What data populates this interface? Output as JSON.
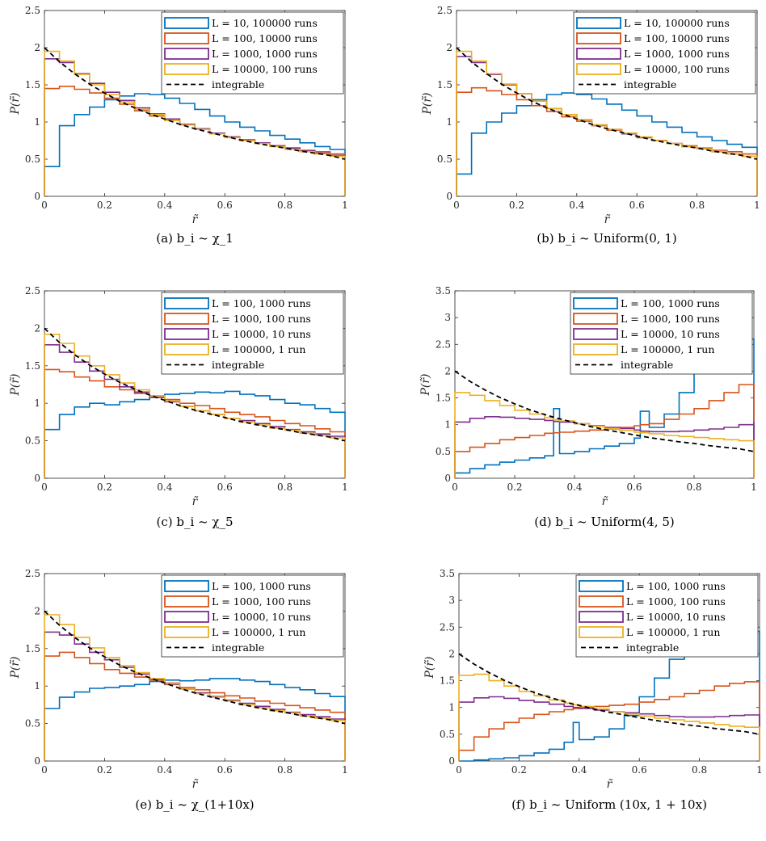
{
  "figure": {
    "series_colors": [
      "#0072BD",
      "#D95319",
      "#7E2F8E",
      "#EDB120"
    ],
    "reference_color": "#000000"
  },
  "chart_data": [
    {
      "id": "a",
      "type": "line",
      "caption": "(a) b_i ~ χ_1",
      "xlabel": "r̃",
      "ylabel": "P(r̃)",
      "xlim": [
        0,
        1
      ],
      "ylim": [
        0,
        2.5
      ],
      "x_ticks": [
        "0",
        "0.2",
        "0.4",
        "0.6",
        "0.8",
        "1"
      ],
      "y_ticks": [
        "0",
        "0.5",
        "1",
        "1.5",
        "2",
        "2.5"
      ],
      "grid": false,
      "legend_position": "top-right",
      "x": [
        0,
        0.05,
        0.1,
        0.15,
        0.2,
        0.25,
        0.3,
        0.35,
        0.4,
        0.45,
        0.5,
        0.55,
        0.6,
        0.65,
        0.7,
        0.75,
        0.8,
        0.85,
        0.9,
        0.95,
        1
      ],
      "series": [
        {
          "name": "L = 10, 100000 runs",
          "values": [
            0.4,
            0.95,
            1.1,
            1.2,
            1.3,
            1.35,
            1.38,
            1.37,
            1.32,
            1.25,
            1.17,
            1.08,
            1.0,
            0.93,
            0.88,
            0.82,
            0.77,
            0.72,
            0.67,
            0.63,
            0.6
          ]
        },
        {
          "name": "L = 100, 10000 runs",
          "values": [
            1.45,
            1.48,
            1.44,
            1.39,
            1.32,
            1.24,
            1.15,
            1.08,
            1.02,
            0.96,
            0.9,
            0.85,
            0.8,
            0.75,
            0.71,
            0.68,
            0.65,
            0.62,
            0.6,
            0.57,
            0.55
          ]
        },
        {
          "name": "L = 1000, 1000 runs",
          "values": [
            1.85,
            1.8,
            1.65,
            1.52,
            1.4,
            1.29,
            1.19,
            1.11,
            1.04,
            0.97,
            0.91,
            0.85,
            0.8,
            0.76,
            0.72,
            0.68,
            0.65,
            0.61,
            0.58,
            0.55,
            0.52
          ]
        },
        {
          "name": "L = 10000, 100 runs",
          "values": [
            1.95,
            1.82,
            1.64,
            1.5,
            1.37,
            1.27,
            1.17,
            1.1,
            1.02,
            0.96,
            0.9,
            0.84,
            0.79,
            0.75,
            0.71,
            0.67,
            0.63,
            0.6,
            0.57,
            0.54,
            0.51
          ]
        },
        {
          "name": "integrable",
          "values": [
            2.0,
            1.81,
            1.65,
            1.51,
            1.39,
            1.28,
            1.19,
            1.11,
            1.04,
            0.97,
            0.91,
            0.86,
            0.81,
            0.76,
            0.72,
            0.68,
            0.65,
            0.61,
            0.58,
            0.55,
            0.5
          ]
        }
      ]
    },
    {
      "id": "b",
      "type": "line",
      "caption": "(b) b_i ~ Uniform(0, 1)",
      "xlabel": "r̃",
      "ylabel": "P(r̃)",
      "xlim": [
        0,
        1
      ],
      "ylim": [
        0,
        2.5
      ],
      "x_ticks": [
        "0",
        "0.2",
        "0.4",
        "0.6",
        "0.8",
        "1"
      ],
      "y_ticks": [
        "0",
        "0.5",
        "1",
        "1.5",
        "2",
        "2.5"
      ],
      "grid": false,
      "legend_position": "top-right",
      "x": [
        0,
        0.05,
        0.1,
        0.15,
        0.2,
        0.25,
        0.3,
        0.35,
        0.4,
        0.45,
        0.5,
        0.55,
        0.6,
        0.65,
        0.7,
        0.75,
        0.8,
        0.85,
        0.9,
        0.95,
        1
      ],
      "series": [
        {
          "name": "L = 10, 100000 runs",
          "values": [
            0.3,
            0.85,
            1.0,
            1.12,
            1.22,
            1.3,
            1.37,
            1.39,
            1.37,
            1.31,
            1.24,
            1.16,
            1.08,
            1.0,
            0.93,
            0.86,
            0.8,
            0.75,
            0.7,
            0.66,
            0.62
          ]
        },
        {
          "name": "L = 100, 10000 runs",
          "values": [
            1.4,
            1.46,
            1.42,
            1.37,
            1.3,
            1.22,
            1.14,
            1.07,
            1.01,
            0.95,
            0.89,
            0.84,
            0.79,
            0.75,
            0.71,
            0.68,
            0.65,
            0.62,
            0.6,
            0.57,
            0.55
          ]
        },
        {
          "name": "L = 1000, 1000 runs",
          "values": [
            1.88,
            1.8,
            1.64,
            1.5,
            1.38,
            1.28,
            1.18,
            1.1,
            1.03,
            0.96,
            0.9,
            0.84,
            0.79,
            0.75,
            0.71,
            0.67,
            0.64,
            0.6,
            0.57,
            0.54,
            0.51
          ]
        },
        {
          "name": "L = 10000, 100 runs",
          "values": [
            1.95,
            1.82,
            1.65,
            1.51,
            1.38,
            1.28,
            1.18,
            1.1,
            1.03,
            0.96,
            0.9,
            0.85,
            0.8,
            0.75,
            0.71,
            0.67,
            0.64,
            0.6,
            0.57,
            0.54,
            0.51
          ]
        },
        {
          "name": "integrable",
          "values": [
            2.0,
            1.81,
            1.65,
            1.51,
            1.39,
            1.28,
            1.19,
            1.11,
            1.04,
            0.97,
            0.91,
            0.86,
            0.81,
            0.76,
            0.72,
            0.68,
            0.65,
            0.61,
            0.58,
            0.55,
            0.5
          ]
        }
      ]
    },
    {
      "id": "c",
      "type": "line",
      "caption": "(c) b_i ~ χ_5",
      "xlabel": "r̃",
      "ylabel": "P(r̃)",
      "xlim": [
        0,
        1
      ],
      "ylim": [
        0,
        2.5
      ],
      "x_ticks": [
        "0",
        "0.2",
        "0.4",
        "0.6",
        "0.8",
        "1"
      ],
      "y_ticks": [
        "0",
        "0.5",
        "1",
        "1.5",
        "2",
        "2.5"
      ],
      "grid": false,
      "legend_position": "top-right",
      "x": [
        0,
        0.05,
        0.1,
        0.15,
        0.2,
        0.25,
        0.3,
        0.35,
        0.4,
        0.45,
        0.5,
        0.55,
        0.6,
        0.65,
        0.7,
        0.75,
        0.8,
        0.85,
        0.9,
        0.95,
        1
      ],
      "series": [
        {
          "name": "L = 100, 1000 runs",
          "values": [
            0.65,
            0.85,
            0.95,
            1.0,
            0.98,
            1.02,
            1.05,
            1.08,
            1.12,
            1.13,
            1.15,
            1.14,
            1.16,
            1.12,
            1.1,
            1.05,
            1.0,
            0.98,
            0.93,
            0.88,
            0.82
          ]
        },
        {
          "name": "L = 1000, 100 runs",
          "values": [
            1.45,
            1.42,
            1.35,
            1.3,
            1.22,
            1.18,
            1.13,
            1.1,
            1.05,
            1.0,
            0.97,
            0.93,
            0.88,
            0.85,
            0.82,
            0.77,
            0.73,
            0.7,
            0.66,
            0.62,
            0.6
          ]
        },
        {
          "name": "L = 10000, 10 runs",
          "values": [
            1.78,
            1.68,
            1.55,
            1.43,
            1.32,
            1.22,
            1.15,
            1.08,
            1.02,
            0.96,
            0.9,
            0.85,
            0.8,
            0.77,
            0.73,
            0.69,
            0.65,
            0.62,
            0.59,
            0.56,
            0.53
          ]
        },
        {
          "name": "L = 100000, 1 run",
          "values": [
            1.92,
            1.8,
            1.63,
            1.5,
            1.38,
            1.27,
            1.18,
            1.1,
            1.03,
            0.96,
            0.9,
            0.85,
            0.8,
            0.75,
            0.71,
            0.67,
            0.64,
            0.6,
            0.57,
            0.54,
            0.51
          ]
        },
        {
          "name": "integrable",
          "values": [
            2.0,
            1.81,
            1.65,
            1.51,
            1.39,
            1.28,
            1.19,
            1.11,
            1.04,
            0.97,
            0.91,
            0.86,
            0.81,
            0.76,
            0.72,
            0.68,
            0.65,
            0.61,
            0.58,
            0.55,
            0.5
          ]
        }
      ]
    },
    {
      "id": "d",
      "type": "line",
      "caption": "(d) b_i ~ Uniform(4, 5)",
      "xlabel": "r̃",
      "ylabel": "P(r̃)",
      "xlim": [
        0,
        1
      ],
      "ylim": [
        0,
        3.5
      ],
      "x_ticks": [
        "0",
        "0.2",
        "0.4",
        "0.6",
        "0.8",
        "1"
      ],
      "y_ticks": [
        "0",
        "0.5",
        "1",
        "1.5",
        "2",
        "2.5",
        "3",
        "3.5"
      ],
      "grid": false,
      "legend_position": "top-right",
      "x": [
        0,
        0.05,
        0.1,
        0.15,
        0.2,
        0.25,
        0.3,
        0.33,
        0.35,
        0.4,
        0.45,
        0.5,
        0.55,
        0.6,
        0.62,
        0.65,
        0.7,
        0.75,
        0.8,
        0.85,
        0.9,
        0.95,
        1
      ],
      "series": [
        {
          "name": "L = 100, 1000 runs",
          "values": [
            0.1,
            0.18,
            0.25,
            0.3,
            0.34,
            0.38,
            0.42,
            1.3,
            0.46,
            0.5,
            0.55,
            0.6,
            0.65,
            0.75,
            1.25,
            0.95,
            1.2,
            1.6,
            2.1,
            2.5,
            2.65,
            2.6,
            2.35
          ]
        },
        {
          "name": "L = 1000, 100 runs",
          "values": [
            0.5,
            0.58,
            0.65,
            0.72,
            0.76,
            0.8,
            0.84,
            0.85,
            0.86,
            0.88,
            0.9,
            0.92,
            0.95,
            0.98,
            1.0,
            1.02,
            1.1,
            1.2,
            1.3,
            1.45,
            1.6,
            1.75,
            1.72
          ]
        },
        {
          "name": "L = 10000, 10 runs",
          "values": [
            1.05,
            1.12,
            1.15,
            1.14,
            1.12,
            1.1,
            1.08,
            1.06,
            1.05,
            1.02,
            0.98,
            0.95,
            0.93,
            0.9,
            0.88,
            0.87,
            0.87,
            0.88,
            0.9,
            0.92,
            0.95,
            1.0,
            1.05
          ]
        },
        {
          "name": "L = 100000, 1 run",
          "values": [
            1.6,
            1.55,
            1.45,
            1.36,
            1.27,
            1.2,
            1.13,
            1.09,
            1.07,
            1.02,
            0.97,
            0.93,
            0.89,
            0.86,
            0.85,
            0.83,
            0.8,
            0.78,
            0.76,
            0.74,
            0.72,
            0.7,
            0.68
          ]
        },
        {
          "name": "integrable",
          "values": [
            2.0,
            1.81,
            1.65,
            1.51,
            1.39,
            1.28,
            1.19,
            1.14,
            1.11,
            1.04,
            0.97,
            0.91,
            0.86,
            0.81,
            0.79,
            0.76,
            0.72,
            0.68,
            0.65,
            0.61,
            0.58,
            0.55,
            0.5
          ]
        }
      ]
    },
    {
      "id": "e",
      "type": "line",
      "caption": "(e) b_i ~ χ_(1+10x)",
      "xlabel": "r̃",
      "ylabel": "P(r̃)",
      "xlim": [
        0,
        1
      ],
      "ylim": [
        0,
        2.5
      ],
      "x_ticks": [
        "0",
        "0.2",
        "0.4",
        "0.6",
        "0.8",
        "1"
      ],
      "y_ticks": [
        "0",
        "0.5",
        "1",
        "1.5",
        "2",
        "2.5"
      ],
      "grid": false,
      "legend_position": "top-right",
      "x": [
        0,
        0.05,
        0.1,
        0.15,
        0.2,
        0.25,
        0.3,
        0.35,
        0.4,
        0.45,
        0.5,
        0.55,
        0.6,
        0.65,
        0.7,
        0.75,
        0.8,
        0.85,
        0.9,
        0.95,
        1
      ],
      "series": [
        {
          "name": "L = 100, 1000 runs",
          "values": [
            0.7,
            0.85,
            0.92,
            0.97,
            0.98,
            1.0,
            1.02,
            1.06,
            1.08,
            1.07,
            1.08,
            1.1,
            1.1,
            1.08,
            1.06,
            1.02,
            0.98,
            0.95,
            0.9,
            0.86,
            0.8
          ]
        },
        {
          "name": "L = 1000, 100 runs",
          "values": [
            1.4,
            1.45,
            1.38,
            1.3,
            1.22,
            1.17,
            1.12,
            1.08,
            1.04,
            0.98,
            0.95,
            0.91,
            0.87,
            0.84,
            0.8,
            0.77,
            0.74,
            0.71,
            0.68,
            0.65,
            0.62
          ]
        },
        {
          "name": "L = 10000, 10 runs",
          "values": [
            1.72,
            1.68,
            1.56,
            1.45,
            1.35,
            1.25,
            1.16,
            1.09,
            1.02,
            0.96,
            0.91,
            0.86,
            0.81,
            0.77,
            0.73,
            0.69,
            0.65,
            0.62,
            0.59,
            0.56,
            0.54
          ]
        },
        {
          "name": "L = 100000, 1 run",
          "values": [
            1.95,
            1.82,
            1.65,
            1.51,
            1.38,
            1.27,
            1.18,
            1.1,
            1.03,
            0.96,
            0.9,
            0.85,
            0.8,
            0.75,
            0.71,
            0.67,
            0.64,
            0.6,
            0.57,
            0.54,
            0.51
          ]
        },
        {
          "name": "integrable",
          "values": [
            2.0,
            1.81,
            1.65,
            1.51,
            1.39,
            1.28,
            1.19,
            1.11,
            1.04,
            0.97,
            0.91,
            0.86,
            0.81,
            0.76,
            0.72,
            0.68,
            0.65,
            0.61,
            0.58,
            0.55,
            0.5
          ]
        }
      ]
    },
    {
      "id": "f",
      "type": "line",
      "caption": "(f) b_i ~ Uniform (10x, 1 + 10x)",
      "xlabel": "r̃",
      "ylabel": "P(r̃)",
      "xlim": [
        0,
        1
      ],
      "ylim": [
        0,
        3.5
      ],
      "x_ticks": [
        "0",
        "0.2",
        "0.4",
        "0.6",
        "0.8",
        "1"
      ],
      "y_ticks": [
        "0",
        "0.5",
        "1",
        "1.5",
        "2",
        "2.5",
        "3",
        "3.5"
      ],
      "grid": false,
      "legend_position": "top-right",
      "x": [
        0,
        0.05,
        0.1,
        0.15,
        0.2,
        0.25,
        0.3,
        0.35,
        0.38,
        0.4,
        0.45,
        0.5,
        0.55,
        0.6,
        0.65,
        0.7,
        0.75,
        0.8,
        0.85,
        0.9,
        0.95,
        1
      ],
      "series": [
        {
          "name": "L = 100, 1000 runs",
          "values": [
            0.0,
            0.02,
            0.04,
            0.06,
            0.1,
            0.15,
            0.22,
            0.35,
            0.72,
            0.4,
            0.45,
            0.6,
            0.85,
            1.2,
            1.55,
            1.9,
            2.2,
            2.45,
            2.55,
            2.5,
            2.42,
            2.25
          ]
        },
        {
          "name": "L = 1000, 100 runs",
          "values": [
            0.2,
            0.45,
            0.6,
            0.72,
            0.8,
            0.87,
            0.92,
            0.96,
            0.98,
            1.0,
            1.02,
            1.04,
            1.06,
            1.1,
            1.15,
            1.2,
            1.26,
            1.32,
            1.4,
            1.45,
            1.48,
            1.42
          ]
        },
        {
          "name": "L = 10000, 10 runs",
          "values": [
            1.1,
            1.18,
            1.2,
            1.17,
            1.13,
            1.1,
            1.06,
            1.02,
            1.0,
            0.98,
            0.95,
            0.92,
            0.9,
            0.88,
            0.85,
            0.83,
            0.82,
            0.82,
            0.83,
            0.85,
            0.86,
            0.88
          ]
        },
        {
          "name": "L = 100000, 1 run",
          "values": [
            1.6,
            1.62,
            1.5,
            1.4,
            1.3,
            1.22,
            1.14,
            1.08,
            1.05,
            1.02,
            0.97,
            0.92,
            0.88,
            0.84,
            0.8,
            0.77,
            0.74,
            0.71,
            0.68,
            0.65,
            0.63,
            0.6
          ]
        },
        {
          "name": "integrable",
          "values": [
            2.0,
            1.81,
            1.65,
            1.51,
            1.39,
            1.28,
            1.19,
            1.11,
            1.06,
            1.04,
            0.97,
            0.91,
            0.86,
            0.81,
            0.76,
            0.72,
            0.68,
            0.65,
            0.61,
            0.58,
            0.55,
            0.5
          ]
        }
      ]
    }
  ]
}
